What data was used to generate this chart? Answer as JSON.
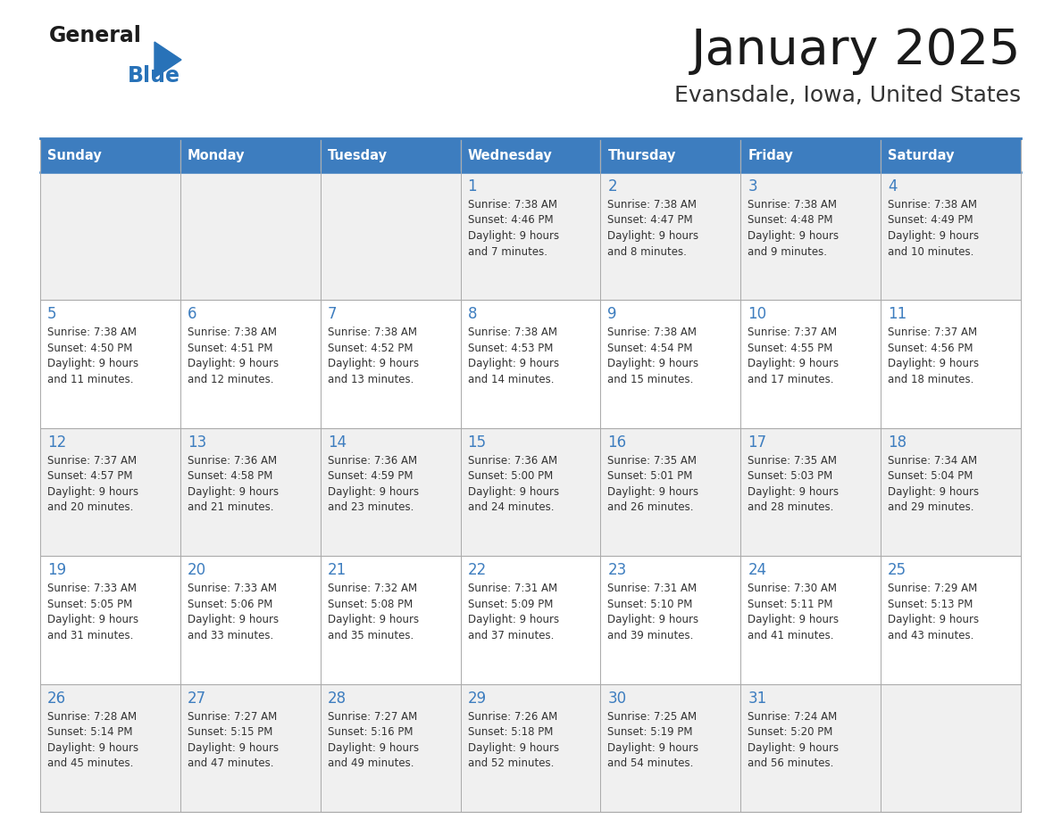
{
  "title": "January 2025",
  "subtitle": "Evansdale, Iowa, United States",
  "days_of_week": [
    "Sunday",
    "Monday",
    "Tuesday",
    "Wednesday",
    "Thursday",
    "Friday",
    "Saturday"
  ],
  "header_bg": "#3d7dbf",
  "header_text": "#ffffff",
  "row_bg_odd": "#f0f0f0",
  "row_bg_even": "#ffffff",
  "day_num_color": "#3d7dbf",
  "info_color": "#333333",
  "title_color": "#1a1a1a",
  "subtitle_color": "#333333",
  "calendar_data": [
    [
      {
        "day": "",
        "sunrise": "",
        "sunset": "",
        "daylight": ""
      },
      {
        "day": "",
        "sunrise": "",
        "sunset": "",
        "daylight": ""
      },
      {
        "day": "",
        "sunrise": "",
        "sunset": "",
        "daylight": ""
      },
      {
        "day": "1",
        "sunrise": "7:38 AM",
        "sunset": "4:46 PM",
        "daylight": "9 hours\nand 7 minutes."
      },
      {
        "day": "2",
        "sunrise": "7:38 AM",
        "sunset": "4:47 PM",
        "daylight": "9 hours\nand 8 minutes."
      },
      {
        "day": "3",
        "sunrise": "7:38 AM",
        "sunset": "4:48 PM",
        "daylight": "9 hours\nand 9 minutes."
      },
      {
        "day": "4",
        "sunrise": "7:38 AM",
        "sunset": "4:49 PM",
        "daylight": "9 hours\nand 10 minutes."
      }
    ],
    [
      {
        "day": "5",
        "sunrise": "7:38 AM",
        "sunset": "4:50 PM",
        "daylight": "9 hours\nand 11 minutes."
      },
      {
        "day": "6",
        "sunrise": "7:38 AM",
        "sunset": "4:51 PM",
        "daylight": "9 hours\nand 12 minutes."
      },
      {
        "day": "7",
        "sunrise": "7:38 AM",
        "sunset": "4:52 PM",
        "daylight": "9 hours\nand 13 minutes."
      },
      {
        "day": "8",
        "sunrise": "7:38 AM",
        "sunset": "4:53 PM",
        "daylight": "9 hours\nand 14 minutes."
      },
      {
        "day": "9",
        "sunrise": "7:38 AM",
        "sunset": "4:54 PM",
        "daylight": "9 hours\nand 15 minutes."
      },
      {
        "day": "10",
        "sunrise": "7:37 AM",
        "sunset": "4:55 PM",
        "daylight": "9 hours\nand 17 minutes."
      },
      {
        "day": "11",
        "sunrise": "7:37 AM",
        "sunset": "4:56 PM",
        "daylight": "9 hours\nand 18 minutes."
      }
    ],
    [
      {
        "day": "12",
        "sunrise": "7:37 AM",
        "sunset": "4:57 PM",
        "daylight": "9 hours\nand 20 minutes."
      },
      {
        "day": "13",
        "sunrise": "7:36 AM",
        "sunset": "4:58 PM",
        "daylight": "9 hours\nand 21 minutes."
      },
      {
        "day": "14",
        "sunrise": "7:36 AM",
        "sunset": "4:59 PM",
        "daylight": "9 hours\nand 23 minutes."
      },
      {
        "day": "15",
        "sunrise": "7:36 AM",
        "sunset": "5:00 PM",
        "daylight": "9 hours\nand 24 minutes."
      },
      {
        "day": "16",
        "sunrise": "7:35 AM",
        "sunset": "5:01 PM",
        "daylight": "9 hours\nand 26 minutes."
      },
      {
        "day": "17",
        "sunrise": "7:35 AM",
        "sunset": "5:03 PM",
        "daylight": "9 hours\nand 28 minutes."
      },
      {
        "day": "18",
        "sunrise": "7:34 AM",
        "sunset": "5:04 PM",
        "daylight": "9 hours\nand 29 minutes."
      }
    ],
    [
      {
        "day": "19",
        "sunrise": "7:33 AM",
        "sunset": "5:05 PM",
        "daylight": "9 hours\nand 31 minutes."
      },
      {
        "day": "20",
        "sunrise": "7:33 AM",
        "sunset": "5:06 PM",
        "daylight": "9 hours\nand 33 minutes."
      },
      {
        "day": "21",
        "sunrise": "7:32 AM",
        "sunset": "5:08 PM",
        "daylight": "9 hours\nand 35 minutes."
      },
      {
        "day": "22",
        "sunrise": "7:31 AM",
        "sunset": "5:09 PM",
        "daylight": "9 hours\nand 37 minutes."
      },
      {
        "day": "23",
        "sunrise": "7:31 AM",
        "sunset": "5:10 PM",
        "daylight": "9 hours\nand 39 minutes."
      },
      {
        "day": "24",
        "sunrise": "7:30 AM",
        "sunset": "5:11 PM",
        "daylight": "9 hours\nand 41 minutes."
      },
      {
        "day": "25",
        "sunrise": "7:29 AM",
        "sunset": "5:13 PM",
        "daylight": "9 hours\nand 43 minutes."
      }
    ],
    [
      {
        "day": "26",
        "sunrise": "7:28 AM",
        "sunset": "5:14 PM",
        "daylight": "9 hours\nand 45 minutes."
      },
      {
        "day": "27",
        "sunrise": "7:27 AM",
        "sunset": "5:15 PM",
        "daylight": "9 hours\nand 47 minutes."
      },
      {
        "day": "28",
        "sunrise": "7:27 AM",
        "sunset": "5:16 PM",
        "daylight": "9 hours\nand 49 minutes."
      },
      {
        "day": "29",
        "sunrise": "7:26 AM",
        "sunset": "5:18 PM",
        "daylight": "9 hours\nand 52 minutes."
      },
      {
        "day": "30",
        "sunrise": "7:25 AM",
        "sunset": "5:19 PM",
        "daylight": "9 hours\nand 54 minutes."
      },
      {
        "day": "31",
        "sunrise": "7:24 AM",
        "sunset": "5:20 PM",
        "daylight": "9 hours\nand 56 minutes."
      },
      {
        "day": "",
        "sunrise": "",
        "sunset": "",
        "daylight": ""
      }
    ]
  ]
}
